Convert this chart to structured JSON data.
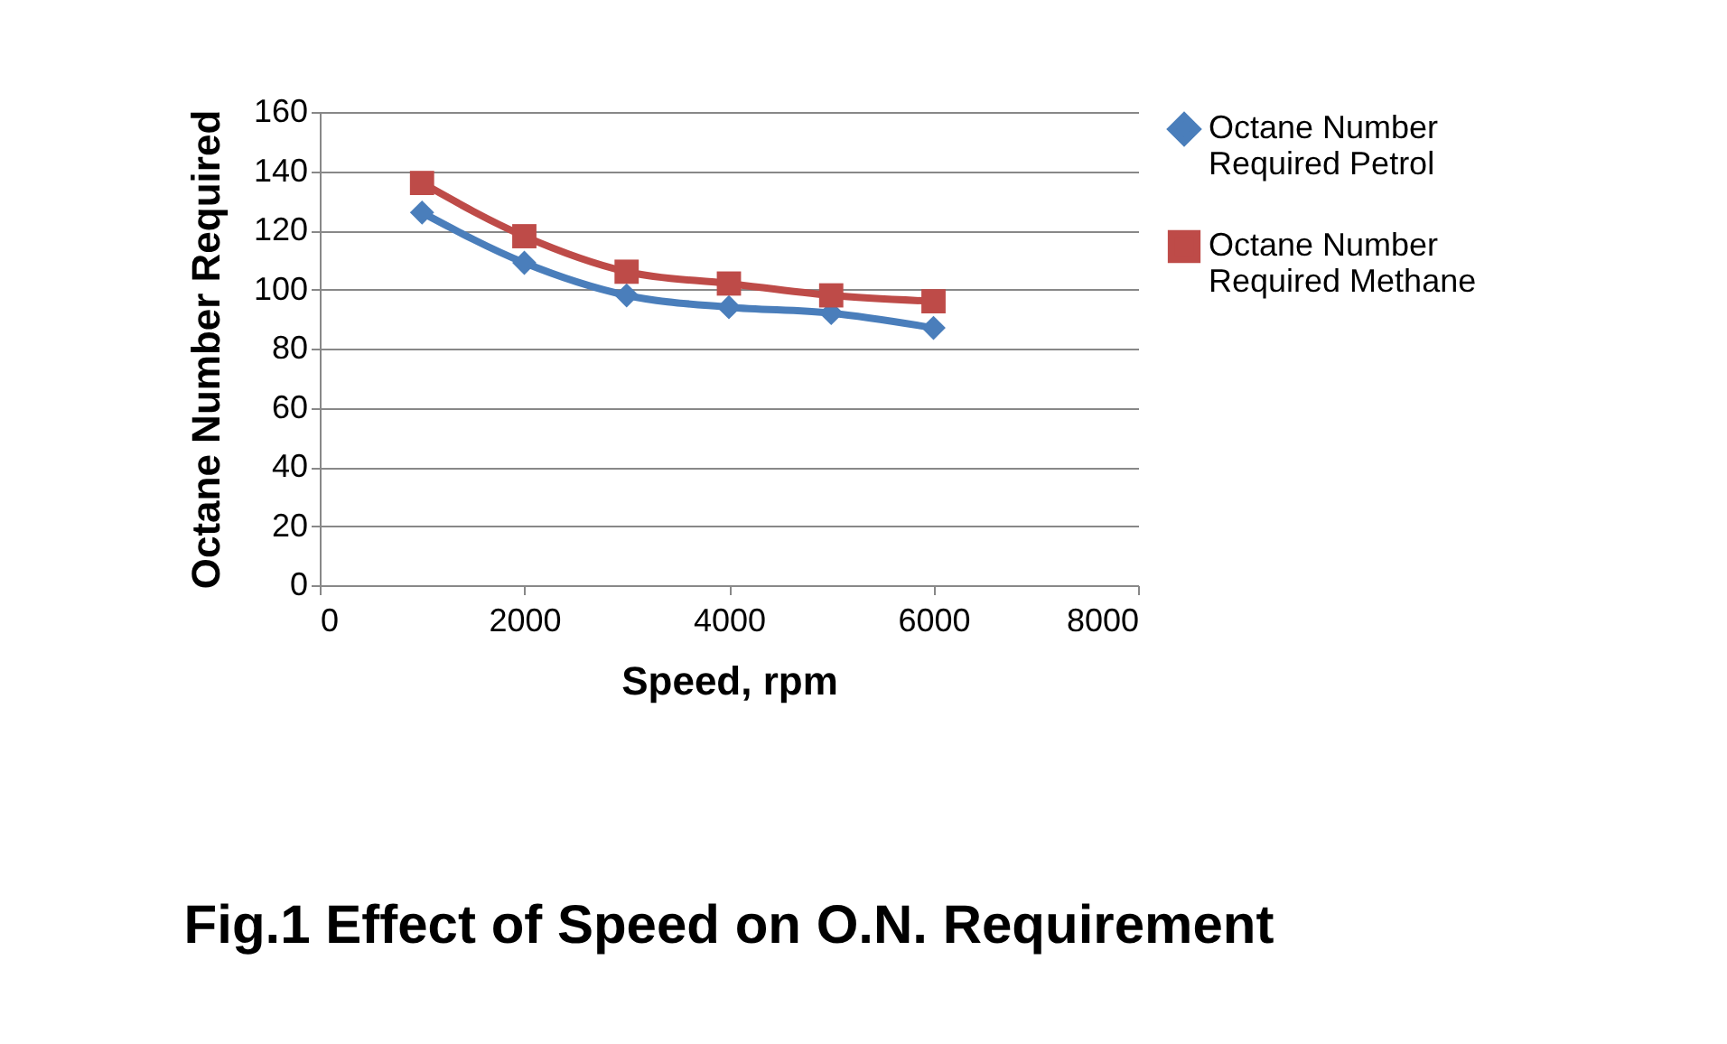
{
  "chart_data": {
    "type": "line",
    "title": "Fig.1 Effect of Speed on O.N. Requirement",
    "xlabel": "Speed, rpm",
    "ylabel": "Octane Number Required",
    "x": [
      1000,
      2000,
      3000,
      4000,
      5000,
      6000
    ],
    "series": [
      {
        "name": "Octane Number Required Petrol",
        "color": "#4a7ebb",
        "marker": "diamond",
        "values": [
          126,
          109,
          98,
          94,
          92,
          87
        ]
      },
      {
        "name": "Octane Number Required Methane",
        "color": "#be4b48",
        "marker": "square",
        "values": [
          136,
          118,
          106,
          102,
          98,
          96
        ]
      }
    ],
    "xlim": [
      0,
      8000
    ],
    "xticks": [
      0,
      2000,
      4000,
      6000,
      8000
    ],
    "ylim": [
      0,
      160
    ],
    "yticks": [
      0,
      20,
      40,
      60,
      80,
      100,
      120,
      140,
      160
    ],
    "grid": "y",
    "legend": "right"
  }
}
